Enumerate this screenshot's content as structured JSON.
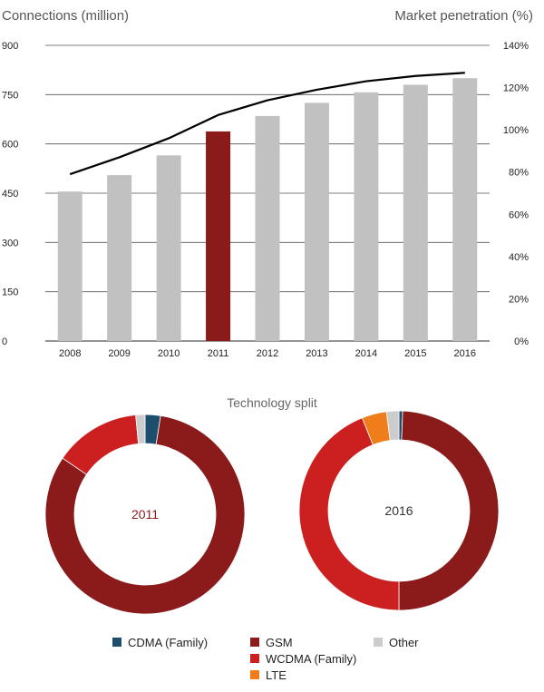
{
  "chart_data": [
    {
      "type": "bar",
      "categories": [
        "2008",
        "2009",
        "2010",
        "2011",
        "2012",
        "2013",
        "2014",
        "2015",
        "2016"
      ],
      "series": [
        {
          "values": [
            455,
            505,
            565,
            638,
            685,
            725,
            757,
            780,
            800
          ],
          "axis": "left"
        },
        {
          "type": "line",
          "values": [
            79,
            87,
            96,
            107,
            114,
            119,
            123,
            125.5,
            127
          ],
          "axis": "right"
        }
      ],
      "highlight_category": "2011",
      "colors": {
        "bar": "#c1c1c1",
        "highlight": "#8b1a1a",
        "line": "#000000"
      },
      "ylabel": "Connections (million)",
      "y2label": "Market penetration (%)",
      "ylim": [
        0,
        900
      ],
      "yticks": [
        "0",
        "150",
        "300",
        "450",
        "600",
        "750",
        "900"
      ],
      "y2lim": [
        0,
        140
      ],
      "y2ticks": [
        "0%",
        "20%",
        "40%",
        "60%",
        "80%",
        "100%",
        "120%",
        "140%"
      ],
      "grid": true
    },
    {
      "type": "pie",
      "title": "Technology split",
      "donuts": [
        {
          "label": "2011",
          "label_color": "#8b1a1a",
          "slices": [
            {
              "name": "CDMA (Family)",
              "value": 2.5
            },
            {
              "name": "GSM",
              "value": 82
            },
            {
              "name": "WCDMA (Family)",
              "value": 14
            },
            {
              "name": "LTE",
              "value": 0
            },
            {
              "name": "Other",
              "value": 1.5
            }
          ]
        },
        {
          "label": "2016",
          "label_color": "#333333",
          "slices": [
            {
              "name": "CDMA (Family)",
              "value": 0.6
            },
            {
              "name": "GSM",
              "value": 49.4
            },
            {
              "name": "WCDMA (Family)",
              "value": 44
            },
            {
              "name": "LTE",
              "value": 4
            },
            {
              "name": "Other",
              "value": 2
            }
          ]
        }
      ],
      "legend": [
        {
          "name": "CDMA (Family)",
          "color": "#1d4e6e"
        },
        {
          "name": "GSM",
          "color": "#8b1a1a"
        },
        {
          "name": "Other",
          "color": "#cccccc"
        },
        {
          "name": "WCDMA (Family)",
          "color": "#cc1f1f"
        },
        {
          "name": "LTE",
          "color": "#ef7d1a"
        }
      ]
    }
  ]
}
